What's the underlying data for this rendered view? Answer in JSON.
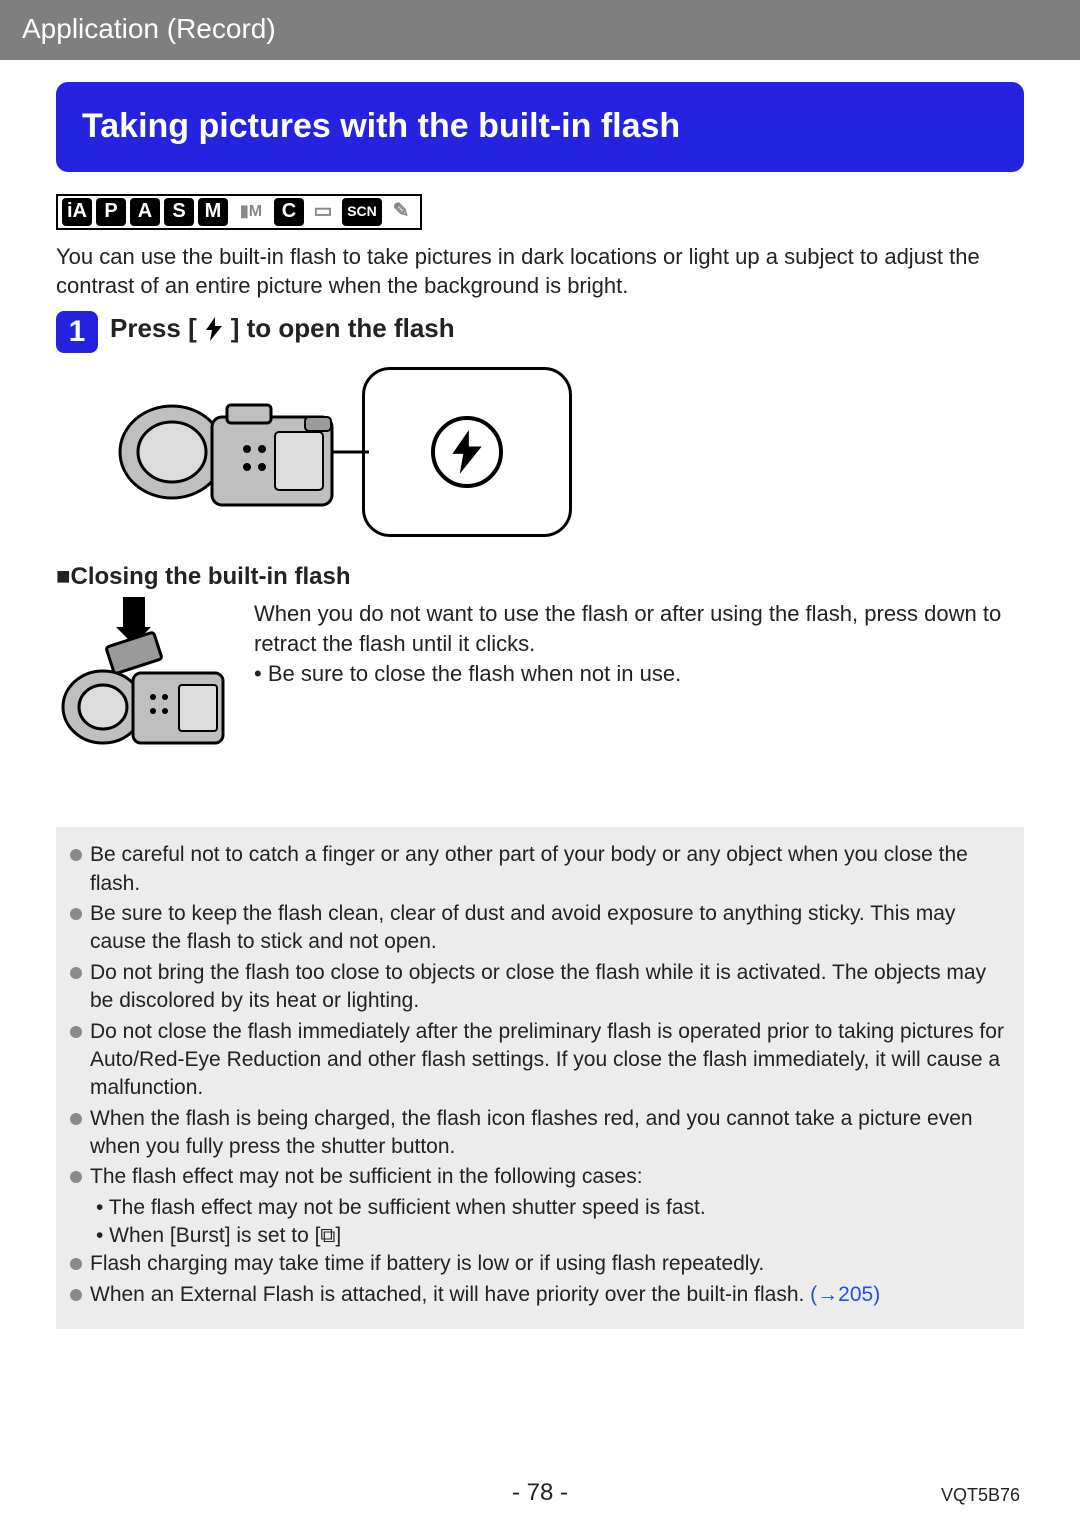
{
  "header": {
    "section_label": "Application (Record)"
  },
  "title": "Taking pictures with the built-in flash",
  "mode_icons": [
    {
      "label": "iA",
      "style": "dark",
      "cls": ""
    },
    {
      "label": "P",
      "style": "dark",
      "cls": ""
    },
    {
      "label": "A",
      "style": "dark",
      "cls": ""
    },
    {
      "label": "S",
      "style": "dark",
      "cls": ""
    },
    {
      "label": "M",
      "style": "dark",
      "cls": ""
    },
    {
      "label": "▮M",
      "style": "light",
      "cls": "wide"
    },
    {
      "label": "C",
      "style": "dark",
      "cls": ""
    },
    {
      "label": "▭",
      "style": "light",
      "cls": ""
    },
    {
      "label": "SCN",
      "style": "dark",
      "cls": "scn"
    },
    {
      "label": "✎",
      "style": "light",
      "cls": ""
    }
  ],
  "intro": "You can use the built-in flash to take pictures in dark locations or light up a subject to adjust the contrast of an entire picture when the background is bright.",
  "step1": {
    "number": "1",
    "title_before": "Press [",
    "title_after": "] to open the flash"
  },
  "closing": {
    "heading": "■Closing the built-in flash",
    "body": "When you do not want to use the flash or after using the flash, press down to retract the flash until it clicks.",
    "bullet": "Be sure to close the flash when not in use."
  },
  "notes": [
    {
      "text": "Be careful not to catch a finger or any other part of your body or any object when you close the flash."
    },
    {
      "text": "Be sure to keep the flash clean, clear of dust and avoid exposure to anything sticky. This may cause the flash to stick and not open."
    },
    {
      "text": "Do not bring the flash too close to objects or close the flash while it is activated. The objects may be discolored by its heat or lighting."
    },
    {
      "text": "Do not close the flash immediately after the preliminary flash is operated prior to taking pictures for Auto/Red-Eye Reduction and other flash settings. If you close the flash immediately, it will cause a malfunction."
    },
    {
      "text": "When the flash is being charged, the flash icon flashes red, and you cannot take a picture even when you fully press the shutter button."
    },
    {
      "text": "The flash effect may not be sufficient in the following cases:",
      "sub": [
        "The flash effect may not be sufficient when shutter speed is fast.",
        "When [Burst] is set to [⧉]"
      ]
    },
    {
      "text": "Flash charging may take time if battery is low or if using flash repeatedly."
    },
    {
      "text": "When an External Flash is attached, it will have priority over the built-in flash.",
      "link": " (→205)"
    }
  ],
  "footer": {
    "page": "- 78 -",
    "doc_code": "VQT5B76"
  },
  "colors": {
    "accent": "#2323e0",
    "header_bg": "#7f7f7f",
    "notes_bg": "#ececec",
    "link": "#2050e8"
  }
}
